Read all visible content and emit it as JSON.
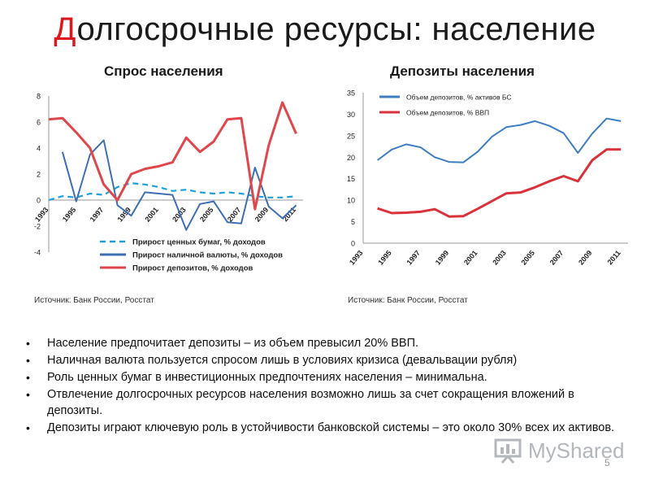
{
  "slide": {
    "title_first_letter": "Д",
    "title_rest": "олгосрочные ресурсы: население",
    "page_number": "5",
    "watermark": "MyShared"
  },
  "sources": {
    "left": "Источник: Банк России, Росстат",
    "right": "Источник: Банк России, Росстат"
  },
  "bullets": [
    "Население предпочитает депозиты – из объем превысил 20% ВВП.",
    "Наличная валюта пользуется спросом лишь в условиях кризиса (девальвации рубля)",
    "Роль ценных бумаг в инвестиционных предпочтениях населения – минимальна.",
    "Отвлечение долгосрочных ресурсов населения возможно лишь за счет сокращения вложений в депозиты.",
    "Депозиты играют ключевую роль в устойчивости банковской системы – это около 30% всех их активов."
  ],
  "colors": {
    "title_accent": "#e0161d",
    "securities": "#1ea0dc",
    "currency": "#3e6fb5",
    "deposits_left": "#e0474c",
    "assets": "#3e7ec4",
    "deposits_gdp": "#d9323a"
  },
  "chart_data": [
    {
      "type": "line",
      "title": "Спрос населения",
      "xlabel": "",
      "ylabel": "",
      "x_tick_labels": [
        "1993",
        "1995",
        "1997",
        "1999",
        "2001",
        "2003",
        "2005",
        "2007",
        "2009",
        "2011"
      ],
      "ylim": [
        -4,
        8
      ],
      "y_ticks": [
        -4,
        -2,
        0,
        2,
        4,
        6,
        8
      ],
      "grid": false,
      "legend": "bottom",
      "x": [
        1993,
        1994,
        1995,
        1996,
        1997,
        1998,
        1999,
        2000,
        2001,
        2002,
        2003,
        2004,
        2005,
        2006,
        2007,
        2008,
        2009,
        2010,
        2011
      ],
      "series": [
        {
          "name": "Прирост ценных бумаг, % доходов",
          "style": "dashed",
          "color_key": "securities",
          "values": [
            0.0,
            0.3,
            0.2,
            0.5,
            0.4,
            1.0,
            1.3,
            1.2,
            1.0,
            0.7,
            0.8,
            0.6,
            0.5,
            0.6,
            0.5,
            0.3,
            0.2,
            0.2,
            0.3
          ]
        },
        {
          "name": "Прирост наличной валюты, % доходов",
          "style": "solid",
          "color_key": "currency",
          "values": [
            null,
            3.7,
            -0.1,
            3.5,
            4.6,
            -0.4,
            -1.2,
            0.6,
            0.5,
            0.4,
            -2.3,
            -0.3,
            -0.1,
            -1.7,
            -1.8,
            2.5,
            -0.5,
            -1.4,
            -0.4
          ]
        },
        {
          "name": "Прирост депозитов, % доходов",
          "style": "solid",
          "color_key": "deposits_left",
          "values": [
            6.2,
            6.3,
            5.2,
            4.0,
            1.2,
            0.0,
            2.0,
            2.4,
            2.6,
            2.9,
            4.8,
            3.7,
            4.5,
            6.2,
            6.3,
            -0.7,
            4.2,
            7.5,
            5.1
          ]
        }
      ]
    },
    {
      "type": "line",
      "title": "Депозиты населения",
      "xlabel": "",
      "ylabel": "",
      "x_tick_labels": [
        "1993",
        "1995",
        "1997",
        "1999",
        "2001",
        "2003",
        "2005",
        "2007",
        "2009",
        "2011"
      ],
      "ylim": [
        0,
        35
      ],
      "y_ticks": [
        0,
        5,
        10,
        15,
        20,
        25,
        30,
        35
      ],
      "grid": false,
      "legend": "top-left",
      "x": [
        1994,
        1995,
        1996,
        1997,
        1998,
        1999,
        2000,
        2001,
        2002,
        2003,
        2004,
        2005,
        2006,
        2007,
        2008,
        2009,
        2010,
        2011
      ],
      "series": [
        {
          "name": "Объем депозитов, % активов БС",
          "style": "solid",
          "color_key": "assets",
          "values": [
            19.3,
            21.8,
            23.0,
            22.3,
            20.0,
            18.9,
            18.8,
            21.3,
            24.8,
            27.0,
            27.5,
            28.4,
            27.3,
            25.6,
            21.0,
            25.5,
            29.0,
            28.4
          ]
        },
        {
          "name": "Объем депозитов, % ВВП",
          "style": "solid",
          "color_key": "deposits_gdp",
          "values": [
            8.1,
            7.0,
            7.1,
            7.3,
            7.9,
            6.2,
            6.3,
            8.0,
            9.8,
            11.6,
            11.8,
            13.0,
            14.4,
            15.6,
            14.4,
            19.3,
            21.8,
            21.8
          ]
        }
      ]
    }
  ]
}
